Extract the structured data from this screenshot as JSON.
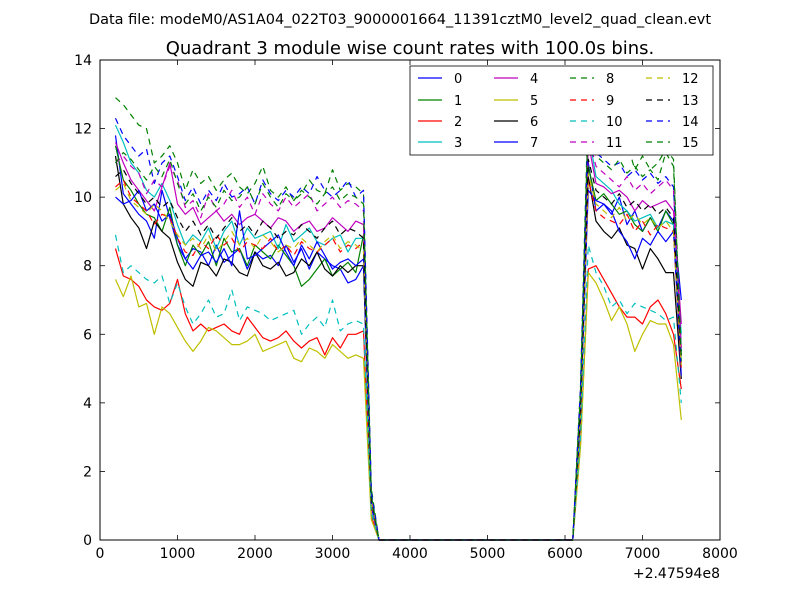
{
  "chart_data": {
    "type": "line",
    "suptitle": "Data file: modeM0/AS1A04_022T03_9000001664_11391cztM0_level2_quad_clean.evt",
    "title": "Quadrant 3 module wise count rates with 100.0s bins.",
    "xlabel": "",
    "ylabel": "",
    "x_offset_label": "+2.47594e8",
    "xlim": [
      0,
      8000
    ],
    "ylim": [
      0,
      14
    ],
    "xticks": [
      0,
      1000,
      2000,
      3000,
      4000,
      5000,
      6000,
      7000,
      8000
    ],
    "yticks": [
      0,
      2,
      4,
      6,
      8,
      10,
      12,
      14
    ],
    "grid": false,
    "legend_position": "top-right",
    "x": [
      200,
      300,
      400,
      500,
      600,
      700,
      800,
      900,
      1000,
      1100,
      1200,
      1300,
      1400,
      1500,
      1600,
      1700,
      1800,
      1900,
      2000,
      2100,
      2200,
      2300,
      2400,
      2500,
      2600,
      2700,
      2800,
      2900,
      3000,
      3100,
      3200,
      3300,
      3400,
      3500,
      3600,
      3700,
      6100,
      6200,
      6300,
      6400,
      6500,
      6600,
      6700,
      6800,
      6900,
      7000,
      7100,
      7200,
      7300,
      7400,
      7500
    ],
    "series": [
      {
        "name": "0",
        "color": "#0000ff",
        "dash": "solid",
        "values": [
          11.8,
          10.1,
          9.8,
          9.5,
          9.3,
          8.8,
          10.2,
          9.4,
          8.6,
          8.2,
          8.5,
          8.4,
          8.0,
          8.6,
          8.1,
          8.3,
          8.5,
          7.9,
          8.4,
          8.2,
          8.3,
          8.0,
          8.6,
          8.1,
          8.5,
          7.9,
          8.4,
          8.2,
          8.0,
          7.9,
          7.5,
          7.6,
          8.0,
          1.0,
          0,
          0,
          0,
          3.5,
          11.0,
          9.6,
          9.8,
          9.5,
          10.0,
          9.2,
          9.6,
          9.0,
          9.4,
          9.1,
          9.6,
          9.3,
          7.0
        ]
      },
      {
        "name": "1",
        "color": "#008000",
        "dash": "solid",
        "values": [
          11.5,
          10.5,
          10.2,
          9.8,
          9.5,
          9.4,
          9.0,
          9.7,
          8.6,
          8.0,
          8.6,
          8.3,
          8.7,
          8.0,
          8.8,
          8.4,
          8.5,
          8.0,
          8.6,
          8.4,
          8.2,
          8.6,
          8.3,
          8.0,
          7.4,
          7.6,
          7.9,
          8.2,
          7.7,
          7.9,
          8.1,
          7.8,
          8.9,
          1.1,
          0,
          0,
          0,
          3.9,
          10.9,
          9.9,
          10.1,
          9.8,
          9.5,
          9.6,
          9.2,
          9.0,
          9.4,
          9.0,
          9.6,
          9.2,
          5.2
        ]
      },
      {
        "name": "2",
        "color": "#ff0000",
        "dash": "solid",
        "values": [
          8.5,
          7.7,
          7.6,
          7.4,
          7.0,
          6.8,
          6.7,
          6.9,
          7.6,
          6.6,
          6.1,
          6.3,
          6.1,
          6.2,
          6.3,
          6.1,
          6.0,
          6.5,
          6.2,
          5.9,
          5.8,
          5.9,
          6.1,
          5.8,
          5.6,
          5.8,
          5.9,
          5.4,
          5.9,
          5.6,
          6.0,
          6.0,
          6.1,
          0.7,
          0,
          0,
          0,
          2.8,
          7.9,
          8.0,
          7.6,
          7.2,
          6.8,
          6.5,
          6.5,
          6.3,
          6.8,
          7.0,
          6.6,
          6.0,
          4.4
        ]
      },
      {
        "name": "3",
        "color": "#00bfbf",
        "dash": "solid",
        "values": [
          12.1,
          11.6,
          11.0,
          10.7,
          10.2,
          10.0,
          10.4,
          9.9,
          9.2,
          8.6,
          8.9,
          8.7,
          9.1,
          8.5,
          9.0,
          9.3,
          8.6,
          9.1,
          8.8,
          8.9,
          9.0,
          8.5,
          9.2,
          8.7,
          8.9,
          9.1,
          8.7,
          8.6,
          8.8,
          8.9,
          8.4,
          8.8,
          8.8,
          1.2,
          0,
          0,
          0,
          4.1,
          11.9,
          10.6,
          10.4,
          10.2,
          9.8,
          9.6,
          9.3,
          9.4,
          9.5,
          9.1,
          9.3,
          9.2,
          6.0
        ]
      },
      {
        "name": "4",
        "color": "#bf00bf",
        "dash": "solid",
        "values": [
          11.6,
          11.0,
          10.5,
          10.2,
          9.9,
          9.6,
          10.3,
          11.0,
          9.8,
          9.5,
          9.7,
          9.2,
          9.4,
          9.6,
          9.3,
          9.5,
          9.2,
          9.4,
          9.5,
          9.3,
          9.1,
          9.4,
          9.3,
          9.0,
          9.2,
          9.3,
          9.0,
          9.1,
          9.4,
          9.2,
          9.0,
          9.3,
          9.2,
          1.2,
          0,
          0,
          0,
          4.3,
          11.6,
          10.4,
          10.3,
          10.1,
          10.2,
          10.0,
          9.6,
          9.9,
          9.7,
          9.8,
          9.9,
          9.6,
          6.3
        ]
      },
      {
        "name": "5",
        "color": "#bfbf00",
        "dash": "solid",
        "values": [
          7.6,
          7.1,
          7.7,
          6.8,
          6.9,
          6.0,
          6.8,
          6.6,
          6.2,
          5.8,
          5.5,
          5.8,
          6.2,
          6.1,
          5.9,
          5.7,
          5.7,
          5.8,
          6.0,
          5.5,
          5.6,
          5.7,
          5.8,
          5.3,
          5.2,
          5.6,
          5.5,
          5.3,
          5.7,
          5.5,
          5.3,
          5.4,
          5.3,
          0.6,
          0,
          0,
          0,
          2.7,
          7.8,
          7.5,
          7.0,
          6.4,
          6.8,
          6.3,
          5.5,
          6.0,
          6.4,
          6.3,
          6.3,
          5.7,
          3.5
        ]
      },
      {
        "name": "6",
        "color": "#000000",
        "dash": "solid",
        "values": [
          11.2,
          9.8,
          9.4,
          9.1,
          8.5,
          9.3,
          9.0,
          8.8,
          8.1,
          7.6,
          7.4,
          8.1,
          8.0,
          7.7,
          8.2,
          8.1,
          7.8,
          7.7,
          8.4,
          8.0,
          7.9,
          8.1,
          7.7,
          7.8,
          8.2,
          8.0,
          8.4,
          7.9,
          7.7,
          8.0,
          7.8,
          8.0,
          8.0,
          1.0,
          0,
          0,
          0,
          3.6,
          10.6,
          9.3,
          9.0,
          8.8,
          9.1,
          8.6,
          8.5,
          7.9,
          8.5,
          8.2,
          7.8,
          7.8,
          4.7
        ]
      },
      {
        "name": "7",
        "color": "#0000ff",
        "dash": "solid",
        "values": [
          10.0,
          9.8,
          9.9,
          10.2,
          9.6,
          9.8,
          9.3,
          9.5,
          8.8,
          8.2,
          7.9,
          8.3,
          8.4,
          8.1,
          8.5,
          8.0,
          9.6,
          8.2,
          8.3,
          8.5,
          8.7,
          8.9,
          8.4,
          8.0,
          8.6,
          8.2,
          8.7,
          8.3,
          7.9,
          8.1,
          8.2,
          8.0,
          8.2,
          1.0,
          0,
          0,
          0,
          3.8,
          10.2,
          9.9,
          9.8,
          9.6,
          9.0,
          8.7,
          8.2,
          8.8,
          8.6,
          9.0,
          8.7,
          9.0,
          4.8
        ]
      },
      {
        "name": "8",
        "color": "#008000",
        "dash": "dashed",
        "values": [
          12.9,
          12.7,
          12.4,
          12.1,
          12.0,
          11.0,
          11.2,
          11.5,
          11.0,
          10.2,
          10.8,
          10.4,
          10.6,
          10.2,
          10.5,
          10.7,
          10.3,
          10.1,
          10.4,
          10.9,
          10.2,
          10.0,
          10.3,
          9.9,
          10.1,
          10.5,
          10.2,
          10.1,
          10.8,
          10.2,
          10.4,
          10.3,
          10.1,
          1.5,
          0,
          0,
          0,
          4.5,
          12.9,
          11.6,
          11.5,
          11.3,
          11.2,
          11.6,
          10.8,
          11.2,
          10.8,
          11.0,
          11.4,
          11.1,
          5.4
        ]
      },
      {
        "name": "9",
        "color": "#ff0000",
        "dash": "dashed",
        "values": [
          10.3,
          10.5,
          10.0,
          9.8,
          9.6,
          9.2,
          9.5,
          9.4,
          8.8,
          8.4,
          8.3,
          8.7,
          8.5,
          8.9,
          8.6,
          8.8,
          8.4,
          8.7,
          8.6,
          8.5,
          8.8,
          8.4,
          8.6,
          8.3,
          8.7,
          8.5,
          8.4,
          8.6,
          8.8,
          8.4,
          8.6,
          8.5,
          8.7,
          1.1,
          0,
          0,
          0,
          3.7,
          10.5,
          9.6,
          9.4,
          9.3,
          9.2,
          9.5,
          9.0,
          9.3,
          8.9,
          9.2,
          9.1,
          9.0,
          5.0
        ]
      },
      {
        "name": "10",
        "color": "#00bfbf",
        "dash": "dashed",
        "values": [
          8.9,
          7.8,
          8.0,
          7.8,
          7.6,
          7.5,
          7.7,
          6.9,
          7.5,
          6.8,
          6.3,
          6.6,
          7.0,
          6.5,
          6.6,
          7.3,
          6.4,
          6.8,
          6.7,
          6.6,
          6.4,
          6.5,
          6.6,
          6.7,
          6.0,
          6.3,
          6.5,
          6.2,
          7.0,
          6.1,
          6.3,
          6.4,
          6.3,
          0.8,
          0,
          0,
          0,
          3.0,
          8.6,
          7.8,
          7.4,
          6.8,
          7.0,
          6.6,
          6.9,
          6.8,
          6.7,
          6.6,
          6.4,
          6.5,
          4.0
        ]
      },
      {
        "name": "11",
        "color": "#bf00bf",
        "dash": "dashed",
        "values": [
          11.0,
          11.2,
          10.9,
          10.7,
          10.1,
          10.5,
          10.3,
          10.9,
          10.5,
          9.7,
          9.9,
          9.4,
          10.1,
          9.6,
          9.8,
          10.2,
          9.7,
          10.0,
          9.5,
          10.1,
          9.8,
          9.6,
          10.0,
          9.7,
          9.9,
          10.1,
          9.6,
          9.8,
          10.0,
          9.7,
          9.9,
          9.8,
          9.6,
          1.3,
          0,
          0,
          0,
          4.2,
          11.8,
          10.9,
          10.7,
          10.5,
          10.3,
          10.6,
          10.2,
          10.4,
          10.1,
          10.3,
          10.5,
          10.2,
          5.6
        ]
      },
      {
        "name": "12",
        "color": "#bfbf00",
        "dash": "dashed",
        "values": [
          10.2,
          10.4,
          9.9,
          9.7,
          9.5,
          9.8,
          9.6,
          9.3,
          8.9,
          8.6,
          8.8,
          8.5,
          8.9,
          8.4,
          8.7,
          9.0,
          8.6,
          8.8,
          8.5,
          8.9,
          8.7,
          8.4,
          8.6,
          8.5,
          8.8,
          8.6,
          8.4,
          8.7,
          8.9,
          8.5,
          8.7,
          8.6,
          8.4,
          1.1,
          0,
          0,
          0,
          3.7,
          10.7,
          9.8,
          9.6,
          9.4,
          9.7,
          9.3,
          9.5,
          9.2,
          9.4,
          9.1,
          9.3,
          9.0,
          5.1
        ]
      },
      {
        "name": "13",
        "color": "#000000",
        "dash": "dashed",
        "values": [
          10.6,
          10.8,
          10.4,
          10.1,
          9.8,
          10.0,
          9.7,
          9.9,
          9.4,
          9.0,
          9.3,
          8.9,
          9.2,
          8.8,
          9.1,
          9.4,
          9.0,
          9.2,
          8.9,
          9.3,
          9.1,
          8.8,
          9.0,
          8.9,
          9.2,
          9.0,
          8.8,
          9.1,
          9.3,
          8.9,
          9.1,
          9.0,
          8.8,
          1.2,
          0,
          0,
          0,
          3.9,
          11.1,
          10.2,
          10.0,
          9.8,
          10.1,
          9.7,
          9.9,
          9.6,
          9.8,
          9.5,
          9.7,
          9.4,
          5.3
        ]
      },
      {
        "name": "14",
        "color": "#0000ff",
        "dash": "dashed",
        "values": [
          12.3,
          11.8,
          11.5,
          11.2,
          11.4,
          10.4,
          11.0,
          11.2,
          10.6,
          9.9,
          10.3,
          9.8,
          10.2,
          9.9,
          10.4,
          10.0,
          10.1,
          10.3,
          9.8,
          10.5,
          10.1,
          9.9,
          10.2,
          10.0,
          10.3,
          10.1,
          10.6,
          10.2,
          10.0,
          10.2,
          10.5,
          10.0,
          10.2,
          1.4,
          0,
          0,
          0,
          4.4,
          12.2,
          11.3,
          11.1,
          10.9,
          11.0,
          10.6,
          10.8,
          10.5,
          10.7,
          10.4,
          10.6,
          10.3,
          5.5
        ]
      },
      {
        "name": "15",
        "color": "#008000",
        "dash": "dashed",
        "values": [
          11.0,
          11.3,
          11.1,
          10.8,
          10.5,
          10.9,
          10.6,
          11.1,
          10.4,
          9.8,
          10.1,
          9.6,
          10.0,
          9.7,
          10.2,
          9.9,
          10.0,
          10.3,
          9.8,
          10.4,
          10.0,
          9.7,
          10.1,
          9.9,
          10.2,
          10.0,
          9.8,
          10.1,
          10.3,
          9.9,
          10.1,
          10.0,
          9.8,
          1.3,
          0,
          0,
          0,
          4.3,
          12.5,
          11.2,
          11.0,
          10.8,
          11.1,
          10.7,
          10.9,
          10.6,
          10.8,
          10.5,
          11.3,
          10.9,
          5.4
        ]
      }
    ]
  }
}
